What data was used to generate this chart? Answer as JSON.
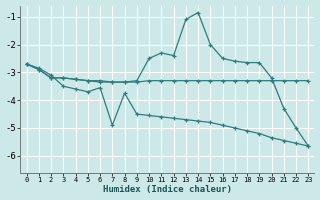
{
  "xlabel": "Humidex (Indice chaleur)",
  "bg_color": "#cce8e8",
  "line_color": "#2e7d7d",
  "grid_color": "#ffffff",
  "xlim": [
    -0.5,
    23.5
  ],
  "ylim": [
    -6.6,
    -0.6
  ],
  "yticks": [
    -6,
    -5,
    -4,
    -3,
    -2,
    -1
  ],
  "xticks": [
    0,
    1,
    2,
    3,
    4,
    5,
    6,
    7,
    8,
    9,
    10,
    11,
    12,
    13,
    14,
    15,
    16,
    17,
    18,
    19,
    20,
    21,
    22,
    23
  ],
  "line1_x": [
    0,
    1,
    2,
    3,
    4,
    5,
    6,
    7,
    8,
    9,
    10,
    11,
    12,
    13,
    14,
    15,
    16,
    17,
    18,
    19,
    20,
    21,
    22,
    23
  ],
  "line1_y": [
    -2.7,
    -2.9,
    -3.2,
    -3.2,
    -3.25,
    -3.3,
    -3.3,
    -3.35,
    -3.35,
    -3.3,
    -2.5,
    -2.3,
    -2.4,
    -1.1,
    -0.85,
    -2.0,
    -2.5,
    -2.6,
    -2.65,
    -2.65,
    -3.2,
    -4.3,
    -5.0,
    -5.65
  ],
  "line2_x": [
    0,
    1,
    2,
    3,
    4,
    5,
    6,
    7,
    8,
    9,
    10,
    11,
    12,
    13,
    14,
    15,
    16,
    17,
    18,
    19,
    20,
    21,
    22,
    23
  ],
  "line2_y": [
    -2.7,
    -2.9,
    -3.2,
    -3.2,
    -3.25,
    -3.3,
    -3.35,
    -3.35,
    -3.35,
    -3.35,
    -3.3,
    -3.3,
    -3.3,
    -3.3,
    -3.3,
    -3.3,
    -3.3,
    -3.3,
    -3.3,
    -3.3,
    -3.3,
    -3.3,
    -3.3,
    -3.3
  ],
  "line3_x": [
    0,
    1,
    2,
    3,
    4,
    5,
    6,
    7,
    8,
    9,
    10,
    11,
    12,
    13,
    14,
    15,
    16,
    17,
    18,
    19,
    20,
    21,
    22,
    23
  ],
  "line3_y": [
    -2.7,
    -2.85,
    -3.1,
    -3.5,
    -3.6,
    -3.7,
    -3.55,
    -4.9,
    -3.75,
    -4.5,
    -4.55,
    -4.6,
    -4.65,
    -4.7,
    -4.75,
    -4.8,
    -4.9,
    -5.0,
    -5.1,
    -5.2,
    -5.35,
    -5.45,
    -5.55,
    -5.65
  ]
}
